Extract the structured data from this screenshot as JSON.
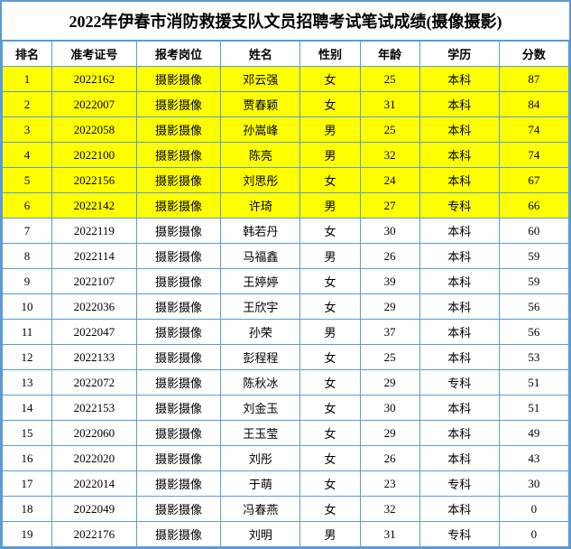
{
  "title": "2022年伊春市消防救援支队文员招聘考试笔试成绩(摄像摄影)",
  "highlight_color": "#ffff00",
  "border_color": "#5b9bd5",
  "columns": [
    "排名",
    "准考证号",
    "报考岗位",
    "姓名",
    "性别",
    "年龄",
    "学历",
    "分数"
  ],
  "highlight_rows": [
    0,
    1,
    2,
    3,
    4,
    5
  ],
  "rows": [
    {
      "rank": "1",
      "id": "2022162",
      "position": "摄影摄像",
      "name": "邓云强",
      "gender": "女",
      "age": "25",
      "edu": "本科",
      "score": "87"
    },
    {
      "rank": "2",
      "id": "2022007",
      "position": "摄影摄像",
      "name": "贾春颖",
      "gender": "女",
      "age": "31",
      "edu": "本科",
      "score": "84"
    },
    {
      "rank": "3",
      "id": "2022058",
      "position": "摄影摄像",
      "name": "孙嵩峰",
      "gender": "男",
      "age": "25",
      "edu": "本科",
      "score": "74"
    },
    {
      "rank": "4",
      "id": "2022100",
      "position": "摄影摄像",
      "name": "陈亮",
      "gender": "男",
      "age": "32",
      "edu": "本科",
      "score": "74"
    },
    {
      "rank": "5",
      "id": "2022156",
      "position": "摄影摄像",
      "name": "刘思彤",
      "gender": "女",
      "age": "24",
      "edu": "本科",
      "score": "67"
    },
    {
      "rank": "6",
      "id": "2022142",
      "position": "摄影摄像",
      "name": "许琦",
      "gender": "男",
      "age": "27",
      "edu": "专科",
      "score": "66"
    },
    {
      "rank": "7",
      "id": "2022119",
      "position": "摄影摄像",
      "name": "韩若丹",
      "gender": "女",
      "age": "30",
      "edu": "本科",
      "score": "60"
    },
    {
      "rank": "8",
      "id": "2022114",
      "position": "摄影摄像",
      "name": "马福鑫",
      "gender": "男",
      "age": "26",
      "edu": "本科",
      "score": "59"
    },
    {
      "rank": "9",
      "id": "2022107",
      "position": "摄影摄像",
      "name": "王婷婷",
      "gender": "女",
      "age": "39",
      "edu": "本科",
      "score": "59"
    },
    {
      "rank": "10",
      "id": "2022036",
      "position": "摄影摄像",
      "name": "王欣宇",
      "gender": "女",
      "age": "29",
      "edu": "本科",
      "score": "56"
    },
    {
      "rank": "11",
      "id": "2022047",
      "position": "摄影摄像",
      "name": "孙荣",
      "gender": "男",
      "age": "37",
      "edu": "本科",
      "score": "56"
    },
    {
      "rank": "12",
      "id": "2022133",
      "position": "摄影摄像",
      "name": "彭程程",
      "gender": "女",
      "age": "25",
      "edu": "本科",
      "score": "53"
    },
    {
      "rank": "13",
      "id": "2022072",
      "position": "摄影摄像",
      "name": "陈秋冰",
      "gender": "女",
      "age": "29",
      "edu": "专科",
      "score": "51"
    },
    {
      "rank": "14",
      "id": "2022153",
      "position": "摄影摄像",
      "name": "刘金玉",
      "gender": "女",
      "age": "30",
      "edu": "本科",
      "score": "51"
    },
    {
      "rank": "15",
      "id": "2022060",
      "position": "摄影摄像",
      "name": "王玉莹",
      "gender": "女",
      "age": "29",
      "edu": "本科",
      "score": "49"
    },
    {
      "rank": "16",
      "id": "2022020",
      "position": "摄影摄像",
      "name": "刘彤",
      "gender": "女",
      "age": "26",
      "edu": "本科",
      "score": "43"
    },
    {
      "rank": "17",
      "id": "2022014",
      "position": "摄影摄像",
      "name": "于萌",
      "gender": "女",
      "age": "23",
      "edu": "专科",
      "score": "30"
    },
    {
      "rank": "18",
      "id": "2022049",
      "position": "摄影摄像",
      "name": "冯春燕",
      "gender": "女",
      "age": "32",
      "edu": "本科",
      "score": "0"
    },
    {
      "rank": "19",
      "id": "2022176",
      "position": "摄影摄像",
      "name": "刘明",
      "gender": "男",
      "age": "31",
      "edu": "专科",
      "score": "0"
    }
  ]
}
